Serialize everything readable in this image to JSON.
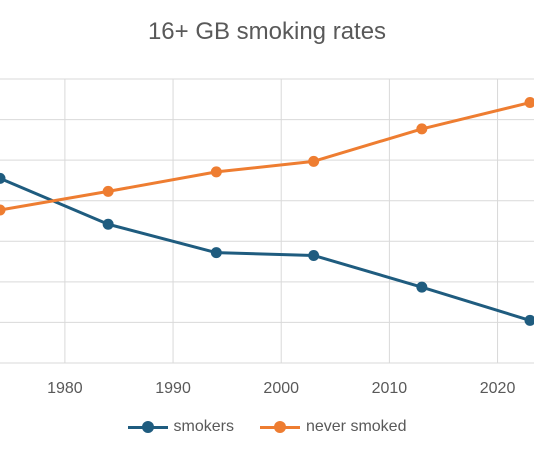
{
  "chart_data": {
    "type": "line",
    "title": "16+ GB smoking rates",
    "x": [
      1974,
      1984,
      1994,
      2003,
      2013,
      2023
    ],
    "xlim": [
      1974,
      2023
    ],
    "x_ticks": [
      1980,
      1990,
      2000,
      2010,
      2020
    ],
    "grid": true,
    "legend_position": "bottom",
    "series": [
      {
        "name": "smokers",
        "color": "#1f5c7f",
        "values": [
          45.5,
          34.2,
          27.2,
          26.5,
          18.7,
          10.5
        ]
      },
      {
        "name": "never smoked",
        "color": "#ee7d31",
        "values": [
          37.7,
          42.3,
          47.1,
          49.7,
          57.7,
          64.2
        ]
      }
    ]
  }
}
